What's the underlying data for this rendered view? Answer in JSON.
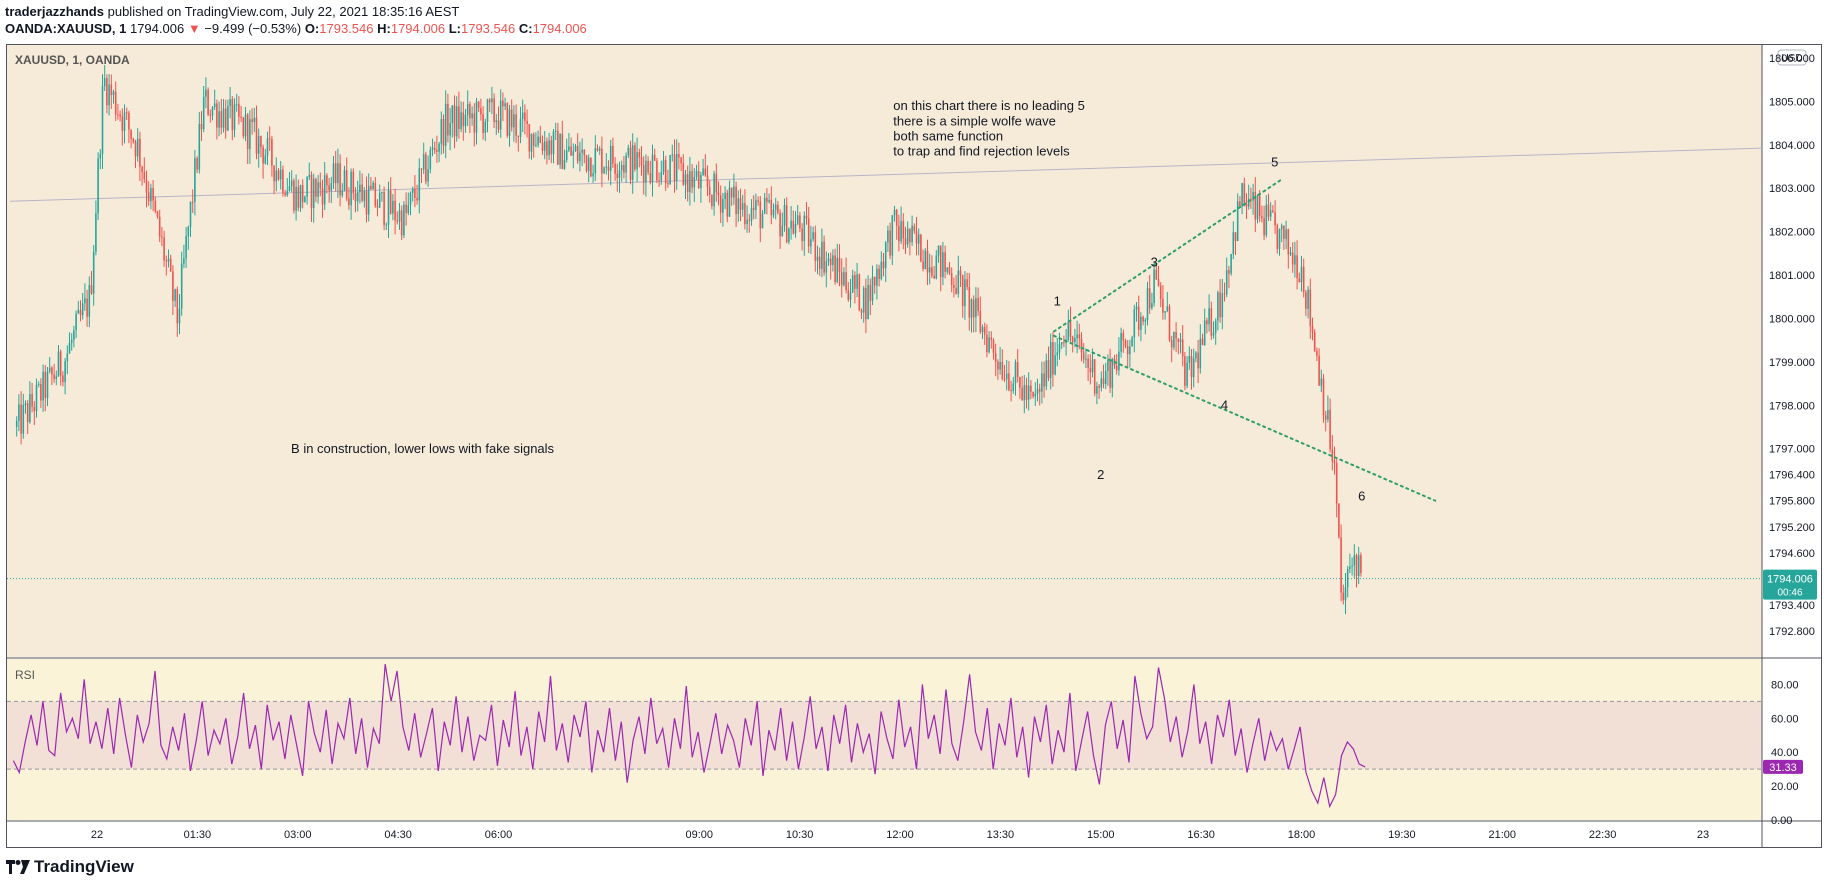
{
  "header": {
    "author": "traderjazzhands",
    "published": "published on TradingView.com, July 22, 2021 18:35:16 AEST"
  },
  "ohlc": {
    "symbol": "OANDA:XAUUSD, 1",
    "last": "1794.006",
    "change_arrow": "▼",
    "change": "−9.499 (−0.53%)",
    "o_label": "O:",
    "o": "1793.546",
    "h_label": "H:",
    "h": "1794.006",
    "l_label": "L:",
    "l": "1793.546",
    "c_label": "C:",
    "c": "1794.006"
  },
  "colors": {
    "pane_bg": "#f6ebd9",
    "rsi_pane_bg": "#fbf3d8",
    "rsi_band": "#f2dfd6",
    "up": "#26a69a",
    "down": "#ef5350",
    "rsi_line": "#9c27b0",
    "wave_lines": "#2e9e6b",
    "price_tag": "#26a69a",
    "rsi_tag": "#9c27b0"
  },
  "footer": {
    "brand": "TradingView",
    "logo_icon": "tradingview-logo-icon"
  },
  "chart_data": [
    {
      "type": "candlestick",
      "title": "XAUUSD, 1, OANDA",
      "currency_label": "USD",
      "ylim": [
        1792.2,
        1806.3
      ],
      "y_ticks": [
        "1806.000",
        "1805.000",
        "1804.000",
        "1803.000",
        "1802.000",
        "1801.000",
        "1800.000",
        "1799.000",
        "1798.000",
        "1797.000",
        "1796.400",
        "1795.800",
        "1795.200",
        "1794.600",
        "1793.400",
        "1792.800"
      ],
      "y_tick_values": [
        1806.0,
        1805.0,
        1804.0,
        1803.0,
        1802.0,
        1801.0,
        1800.0,
        1799.0,
        1798.0,
        1797.0,
        1796.4,
        1795.8,
        1795.2,
        1794.6,
        1793.4,
        1792.8
      ],
      "x_ticks": [
        "22",
        "01:30",
        "03:00",
        "04:30",
        "06:00",
        "09:00",
        "10:30",
        "12:00",
        "13:30",
        "15:00",
        "16:30",
        "18:00",
        "19:30",
        "21:00",
        "22:30",
        "23"
      ],
      "x_tick_hours": [
        0,
        1.5,
        3,
        4.5,
        6,
        9,
        10.5,
        12,
        13.5,
        15,
        16.5,
        18,
        19.5,
        21,
        22.5,
        24
      ],
      "last_price_tag": "1794.006",
      "countdown": "00:46",
      "last_price": 1794.006,
      "path_keypoints": [
        {
          "t": -1.2,
          "p": 1797.5
        },
        {
          "t": -0.5,
          "p": 1799.0
        },
        {
          "t": -0.1,
          "p": 1800.5
        },
        {
          "t": 0.1,
          "p": 1805.5
        },
        {
          "t": 0.6,
          "p": 1804.0
        },
        {
          "t": 1.0,
          "p": 1801.5
        },
        {
          "t": 1.2,
          "p": 1800.0
        },
        {
          "t": 1.6,
          "p": 1805.0
        },
        {
          "t": 2.3,
          "p": 1804.3
        },
        {
          "t": 3.0,
          "p": 1802.8
        },
        {
          "t": 3.6,
          "p": 1803.2
        },
        {
          "t": 4.6,
          "p": 1802.3
        },
        {
          "t": 5.2,
          "p": 1804.5
        },
        {
          "t": 6.0,
          "p": 1804.7
        },
        {
          "t": 7.0,
          "p": 1803.8
        },
        {
          "t": 8.5,
          "p": 1803.5
        },
        {
          "t": 9.6,
          "p": 1802.6
        },
        {
          "t": 10.5,
          "p": 1802.1
        },
        {
          "t": 11.1,
          "p": 1801.0
        },
        {
          "t": 11.5,
          "p": 1800.4
        },
        {
          "t": 11.9,
          "p": 1802.1
        },
        {
          "t": 12.8,
          "p": 1801.0
        },
        {
          "t": 13.5,
          "p": 1799.0
        },
        {
          "t": 14.0,
          "p": 1798.0
        },
        {
          "t": 14.45,
          "p": 1799.8
        },
        {
          "t": 15.0,
          "p": 1798.5
        },
        {
          "t": 15.4,
          "p": 1799.5
        },
        {
          "t": 15.8,
          "p": 1800.8
        },
        {
          "t": 16.3,
          "p": 1798.6
        },
        {
          "t": 16.8,
          "p": 1800.5
        },
        {
          "t": 17.1,
          "p": 1802.8
        },
        {
          "t": 17.6,
          "p": 1802.0
        },
        {
          "t": 18.0,
          "p": 1801.2
        },
        {
          "t": 18.3,
          "p": 1798.5
        },
        {
          "t": 18.5,
          "p": 1796.4
        },
        {
          "t": 18.6,
          "p": 1793.4
        },
        {
          "t": 18.8,
          "p": 1794.6
        },
        {
          "t": 18.9,
          "p": 1794.006
        }
      ],
      "horizontal_trendline": [
        {
          "t": -1.3,
          "p": 1802.7
        },
        {
          "t": 26.5,
          "p": 1804.0
        }
      ],
      "wave_lines": [
        {
          "from": {
            "t": 14.3,
            "p": 1799.7
          },
          "to": {
            "t": 17.7,
            "p": 1803.2
          }
        },
        {
          "from": {
            "t": 14.3,
            "p": 1799.6
          },
          "to": {
            "t": 20.0,
            "p": 1795.8
          }
        }
      ],
      "wave_labels": [
        {
          "text": "1",
          "t": 14.35,
          "p": 1800.3
        },
        {
          "text": "2",
          "t": 15.0,
          "p": 1796.3
        },
        {
          "text": "3",
          "t": 15.8,
          "p": 1801.2
        },
        {
          "text": "4",
          "t": 16.85,
          "p": 1797.9
        },
        {
          "text": "5",
          "t": 17.6,
          "p": 1803.5
        },
        {
          "text": "6",
          "t": 18.9,
          "p": 1795.8
        }
      ],
      "annotations": [
        {
          "text": "on this chart there is no leading 5",
          "t": 11.9,
          "p": 1804.8
        },
        {
          "text": "there is a simple wolfe wave",
          "t": 11.9,
          "p": 1804.45
        },
        {
          "text": "both same function",
          "t": 11.9,
          "p": 1804.1
        },
        {
          "text": "to trap and find rejection levels",
          "t": 11.9,
          "p": 1803.75
        },
        {
          "text": "B in construction, lower lows with fake signals",
          "t": 2.9,
          "p": 1796.9
        }
      ]
    },
    {
      "type": "line",
      "title": "RSI",
      "ylim": [
        0,
        95
      ],
      "y_ticks": [
        "80.00",
        "60.00",
        "40.00",
        "20.00",
        "0.00"
      ],
      "y_tick_values": [
        80,
        60,
        40,
        20,
        0
      ],
      "band": [
        30,
        70
      ],
      "last_value_tag": "31.33",
      "last_value": 31.33,
      "series": [
        {
          "values": [
            35,
            28,
            46,
            62,
            44,
            70,
            41,
            38,
            75,
            52,
            60,
            48,
            83,
            45,
            58,
            42,
            66,
            39,
            72,
            50,
            31,
            62,
            46,
            57,
            88,
            44,
            36,
            55,
            41,
            63,
            29,
            47,
            70,
            38,
            53,
            45,
            60,
            33,
            49,
            75,
            42,
            56,
            30,
            68,
            47,
            58,
            36,
            62,
            44,
            26,
            70,
            51,
            40,
            65,
            33,
            57,
            48,
            72,
            39,
            60,
            31,
            54,
            45,
            92,
            70,
            88,
            55,
            41,
            63,
            37,
            51,
            66,
            29,
            58,
            44,
            73,
            40,
            61,
            35,
            50,
            47,
            68,
            32,
            59,
            43,
            76,
            38,
            55,
            30,
            64,
            46,
            85,
            41,
            57,
            34,
            62,
            49,
            70,
            28,
            53,
            40,
            66,
            35,
            58,
            22,
            47,
            61,
            39,
            72,
            45,
            54,
            31,
            60,
            42,
            79,
            37,
            52,
            28,
            45,
            63,
            39,
            56,
            47,
            31,
            60,
            44,
            70,
            26,
            53,
            41,
            66,
            35,
            58,
            30,
            49,
            73,
            42,
            55,
            29,
            62,
            45,
            68,
            34,
            57,
            40,
            51,
            27,
            64,
            48,
            36,
            71,
            43,
            55,
            30,
            80,
            48,
            62,
            39,
            77,
            45,
            35,
            58,
            86,
            52,
            41,
            66,
            30,
            57,
            44,
            72,
            37,
            55,
            25,
            61,
            46,
            68,
            33,
            53,
            40,
            75,
            29,
            47,
            64,
            38,
            21,
            56,
            70,
            42,
            59,
            34,
            85,
            63,
            48,
            55,
            90,
            72,
            46,
            61,
            37,
            53,
            80,
            45,
            58,
            33,
            62,
            49,
            71,
            38,
            54,
            28,
            45,
            60,
            35,
            52,
            41,
            48,
            30,
            42,
            55,
            28,
            17,
            10,
            25,
            8,
            15,
            38,
            46,
            42,
            33,
            31.33
          ]
        }
      ]
    }
  ]
}
